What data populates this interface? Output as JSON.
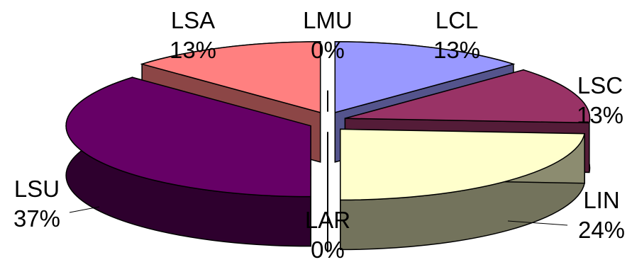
{
  "chart_data": {
    "type": "pie",
    "style": "3d-exploded",
    "title": "",
    "legend": "none",
    "slices": [
      {
        "name": "LMU",
        "percent": 0,
        "label": "0%",
        "color": "#000000"
      },
      {
        "name": "LCL",
        "percent": 13,
        "label": "13%",
        "color": "#9999ff"
      },
      {
        "name": "LSC",
        "percent": 13,
        "label": "13%",
        "color": "#993366"
      },
      {
        "name": "LIN",
        "percent": 24,
        "label": "24%",
        "color": "#ffffcc"
      },
      {
        "name": "LAR",
        "percent": 0,
        "label": "0%",
        "color": "#000000"
      },
      {
        "name": "LSU",
        "percent": 37,
        "label": "37%",
        "color": "#660066"
      },
      {
        "name": "LSA",
        "percent": 13,
        "label": "13%",
        "color": "#ff8080"
      }
    ]
  }
}
